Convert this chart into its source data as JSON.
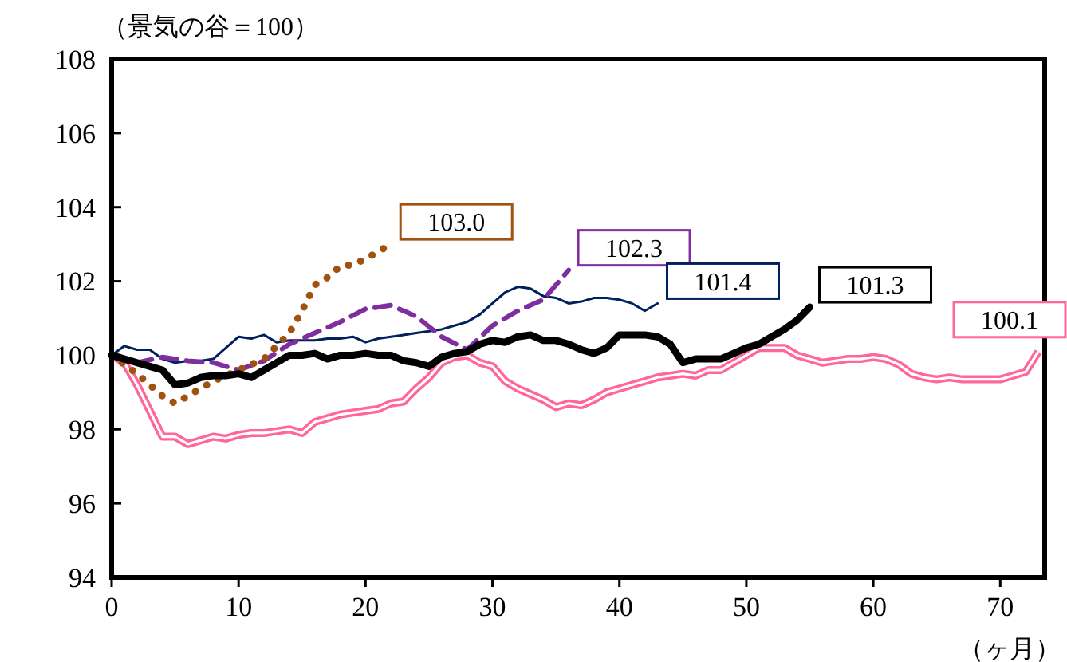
{
  "chart_data": {
    "type": "line",
    "ylabel": "（景気の谷＝100）",
    "xlabel": "（ヶ月）",
    "xlim": [
      0,
      73.5
    ],
    "xticks": [
      0,
      10,
      20,
      30,
      40,
      50,
      60,
      70
    ],
    "ylim": [
      94,
      108
    ],
    "yticks": [
      94,
      96,
      98,
      100,
      102,
      104,
      106,
      108
    ],
    "grid": false,
    "marker": "none",
    "series": [
      {
        "color": "#ff6699",
        "line_style": "solid",
        "x": [
          0,
          1,
          2,
          3,
          4,
          5,
          6,
          7,
          8,
          9,
          10,
          11,
          12,
          13,
          14,
          15,
          16,
          17,
          18,
          19,
          20,
          21,
          22,
          23,
          24,
          25,
          26,
          27,
          28,
          29,
          30,
          31,
          32,
          33,
          34,
          35,
          36,
          37,
          38,
          39,
          40,
          41,
          42,
          43,
          44,
          45,
          46,
          47,
          48,
          49,
          50,
          51,
          52,
          53,
          54,
          55,
          56,
          57,
          58,
          59,
          60,
          61,
          62,
          63,
          64,
          65,
          66,
          67,
          68,
          69,
          70,
          71,
          72,
          73
        ],
        "values": [
          100,
          99.8,
          99.2,
          98.5,
          97.8,
          97.8,
          97.6,
          97.7,
          97.8,
          97.75,
          97.85,
          97.9,
          97.9,
          97.95,
          98.0,
          97.9,
          98.2,
          98.3,
          98.4,
          98.45,
          98.5,
          98.55,
          98.7,
          98.75,
          99.1,
          99.4,
          99.8,
          99.95,
          100.0,
          99.8,
          99.7,
          99.3,
          99.1,
          98.95,
          98.8,
          98.6,
          98.7,
          98.65,
          98.8,
          99.0,
          99.1,
          99.2,
          99.3,
          99.4,
          99.45,
          99.5,
          99.45,
          99.6,
          99.6,
          99.8,
          100.0,
          100.2,
          100.2,
          100.2,
          100.0,
          99.9,
          99.8,
          99.85,
          99.9,
          99.9,
          99.95,
          99.9,
          99.75,
          99.5,
          99.4,
          99.35,
          99.4,
          99.35,
          99.35,
          99.35,
          99.35,
          99.45,
          99.55,
          100.1
        ]
      },
      {
        "color": "#002060",
        "line_style": "solid",
        "x": [
          0,
          1,
          2,
          3,
          4,
          5,
          6,
          7,
          8,
          9,
          10,
          11,
          12,
          13,
          14,
          15,
          16,
          17,
          18,
          19,
          20,
          21,
          22,
          23,
          24,
          25,
          26,
          27,
          28,
          29,
          30,
          31,
          32,
          33,
          34,
          35,
          36,
          37,
          38,
          39,
          40,
          41,
          42,
          43
        ],
        "values": [
          100,
          100.25,
          100.15,
          100.15,
          99.9,
          99.8,
          99.85,
          99.85,
          99.9,
          100.2,
          100.5,
          100.45,
          100.55,
          100.35,
          100.4,
          100.4,
          100.4,
          100.45,
          100.45,
          100.5,
          100.35,
          100.45,
          100.5,
          100.55,
          100.6,
          100.65,
          100.7,
          100.8,
          100.9,
          101.1,
          101.4,
          101.7,
          101.85,
          101.8,
          101.6,
          101.55,
          101.4,
          101.45,
          101.55,
          101.55,
          101.5,
          101.4,
          101.2,
          101.4
        ]
      },
      {
        "color": "#7f2e9f",
        "line_style": "dashed",
        "x": [
          0,
          2,
          4,
          6,
          8,
          10,
          12,
          14,
          16,
          18,
          20,
          22,
          24,
          26,
          28,
          30,
          32,
          34,
          36
        ],
        "values": [
          100,
          99.8,
          99.95,
          99.85,
          99.8,
          99.6,
          99.85,
          100.3,
          100.6,
          100.9,
          101.25,
          101.35,
          101.05,
          100.5,
          100.15,
          100.8,
          101.2,
          101.5,
          102.3
        ]
      },
      {
        "color": "#a0520f",
        "line_style": "dotted",
        "x": [
          0,
          2,
          4,
          5,
          6,
          8,
          10,
          12,
          14,
          15,
          16,
          17,
          18,
          19,
          20,
          21,
          22
        ],
        "values": [
          100,
          99.5,
          98.9,
          98.7,
          98.9,
          99.3,
          99.6,
          99.9,
          100.6,
          101.2,
          101.9,
          102.1,
          102.4,
          102.45,
          102.6,
          102.8,
          103.0
        ]
      },
      {
        "color": "#000000",
        "line_style": "solid",
        "x": [
          0,
          1,
          2,
          3,
          4,
          5,
          6,
          7,
          8,
          9,
          10,
          11,
          12,
          13,
          14,
          15,
          16,
          17,
          18,
          19,
          20,
          21,
          22,
          23,
          24,
          25,
          26,
          27,
          28,
          29,
          30,
          31,
          32,
          33,
          34,
          35,
          36,
          37,
          38,
          39,
          40,
          41,
          42,
          43,
          44,
          45,
          46,
          47,
          48,
          49,
          50,
          51,
          52,
          53,
          54,
          55
        ],
        "values": [
          100,
          99.9,
          99.8,
          99.7,
          99.6,
          99.2,
          99.25,
          99.4,
          99.45,
          99.45,
          99.5,
          99.4,
          99.6,
          99.8,
          100.0,
          100.0,
          100.05,
          99.9,
          100.0,
          100.0,
          100.05,
          100.0,
          100.0,
          99.85,
          99.8,
          99.7,
          99.95,
          100.05,
          100.1,
          100.3,
          100.4,
          100.35,
          100.5,
          100.55,
          100.4,
          100.4,
          100.3,
          100.15,
          100.05,
          100.2,
          100.55,
          100.55,
          100.55,
          100.5,
          100.3,
          99.8,
          99.9,
          99.9,
          99.9,
          100.05,
          100.2,
          100.3,
          100.5,
          100.7,
          100.95,
          101.3
        ]
      }
    ],
    "annotations": [
      {
        "text": "103.0",
        "x": 22,
        "y": 103.0
      },
      {
        "text": "102.3",
        "x": 36,
        "y": 102.3
      },
      {
        "text": "101.4",
        "x": 43,
        "y": 101.4
      },
      {
        "text": "101.3",
        "x": 55,
        "y": 101.3
      },
      {
        "text": "100.1",
        "x": 73,
        "y": 100.1
      }
    ]
  }
}
